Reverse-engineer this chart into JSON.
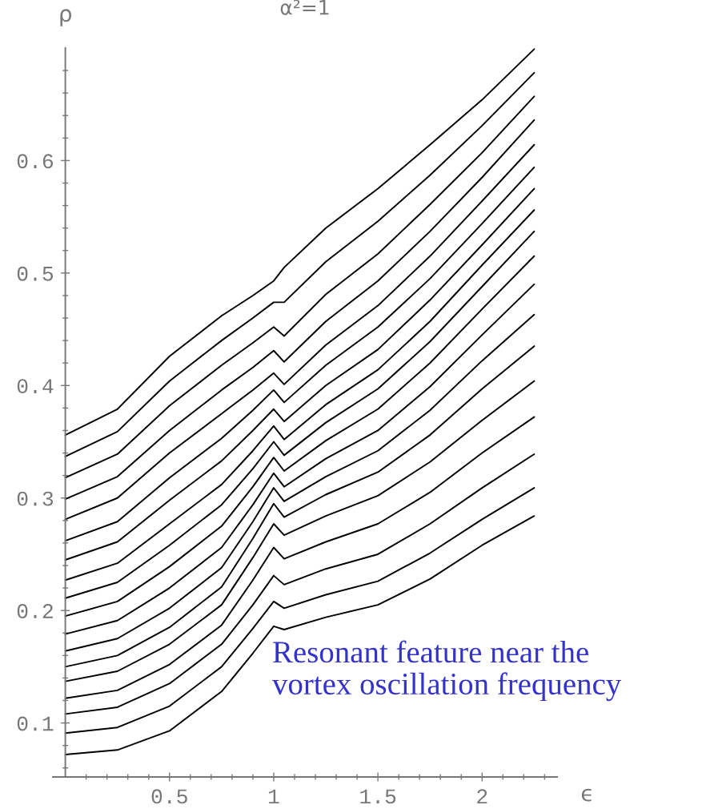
{
  "chart_data": {
    "type": "line",
    "title": "α²=1",
    "xlabel": "ϵ",
    "ylabel": "ρ",
    "x": [
      0,
      0.25,
      0.5,
      0.75,
      0.9,
      1.0,
      1.05,
      1.25,
      1.5,
      1.75,
      2.0,
      2.25
    ],
    "xlim": [
      -0.06,
      2.36
    ],
    "ylim": [
      0.052,
      0.7
    ],
    "xticks": [
      {
        "value": 0.1,
        "label": null
      },
      {
        "value": 0.2,
        "label": null
      },
      {
        "value": 0.3,
        "label": null
      },
      {
        "value": 0.4,
        "label": null
      },
      0.5,
      {
        "value": 0.6,
        "label": null
      },
      {
        "value": 0.7,
        "label": null
      },
      {
        "value": 0.8,
        "label": null
      },
      {
        "value": 0.9,
        "label": null
      },
      1,
      {
        "value": 1.1,
        "label": null
      },
      {
        "value": 1.2,
        "label": null
      },
      {
        "value": 1.3,
        "label": null
      },
      {
        "value": 1.4,
        "label": null
      },
      1.5,
      {
        "value": 1.6,
        "label": null
      },
      {
        "value": 1.7,
        "label": null
      },
      {
        "value": 1.8,
        "label": null
      },
      {
        "value": 1.9,
        "label": null
      },
      2,
      {
        "value": 2.1,
        "label": null
      },
      {
        "value": 2.2,
        "label": null
      },
      {
        "value": 2.3,
        "label": null
      }
    ],
    "yticks": [
      {
        "value": 0.06,
        "label": null
      },
      {
        "value": 0.08,
        "label": null
      },
      0.1,
      {
        "value": 0.12,
        "label": null
      },
      {
        "value": 0.14,
        "label": null
      },
      {
        "value": 0.16,
        "label": null
      },
      {
        "value": 0.18,
        "label": null
      },
      0.2,
      {
        "value": 0.22,
        "label": null
      },
      {
        "value": 0.24,
        "label": null
      },
      {
        "value": 0.26,
        "label": null
      },
      {
        "value": 0.28,
        "label": null
      },
      0.3,
      {
        "value": 0.32,
        "label": null
      },
      {
        "value": 0.34,
        "label": null
      },
      {
        "value": 0.36,
        "label": null
      },
      {
        "value": 0.38,
        "label": null
      },
      0.4,
      {
        "value": 0.42,
        "label": null
      },
      {
        "value": 0.44,
        "label": null
      },
      {
        "value": 0.46,
        "label": null
      },
      {
        "value": 0.48,
        "label": null
      },
      0.5,
      {
        "value": 0.52,
        "label": null
      },
      {
        "value": 0.54,
        "label": null
      },
      {
        "value": 0.56,
        "label": null
      },
      {
        "value": 0.58,
        "label": null
      },
      0.6,
      {
        "value": 0.62,
        "label": null
      },
      {
        "value": 0.64,
        "label": null
      },
      {
        "value": 0.66,
        "label": null
      },
      {
        "value": 0.68,
        "label": null
      }
    ],
    "annotations": [
      "Resonant feature near the\nvortex oscillation frequency"
    ],
    "series": [
      {
        "color": "#000000",
        "values": [
          0.356,
          0.379,
          0.426,
          0.462,
          0.48,
          0.493,
          0.505,
          0.54,
          0.575,
          0.614,
          0.654,
          0.699
        ]
      },
      {
        "color": "#000000",
        "values": [
          0.337,
          0.359,
          0.404,
          0.44,
          0.46,
          0.474,
          0.474,
          0.51,
          0.546,
          0.587,
          0.631,
          0.678
        ]
      },
      {
        "color": "#000000",
        "values": [
          0.318,
          0.339,
          0.382,
          0.418,
          0.438,
          0.452,
          0.444,
          0.481,
          0.517,
          0.561,
          0.607,
          0.657
        ]
      },
      {
        "color": "#000000",
        "values": [
          0.299,
          0.319,
          0.36,
          0.396,
          0.416,
          0.431,
          0.421,
          0.457,
          0.493,
          0.537,
          0.585,
          0.636
        ]
      },
      {
        "color": "#000000",
        "values": [
          0.281,
          0.3,
          0.34,
          0.375,
          0.396,
          0.411,
          0.401,
          0.436,
          0.471,
          0.515,
          0.564,
          0.614
        ]
      },
      {
        "color": "#000000",
        "values": [
          0.262,
          0.279,
          0.318,
          0.353,
          0.378,
          0.396,
          0.385,
          0.418,
          0.452,
          0.495,
          0.544,
          0.594
        ]
      },
      {
        "color": "#000000",
        "values": [
          0.245,
          0.261,
          0.298,
          0.333,
          0.36,
          0.379,
          0.368,
          0.4,
          0.432,
          0.476,
          0.525,
          0.575
        ]
      },
      {
        "color": "#000000",
        "values": [
          0.227,
          0.242,
          0.277,
          0.312,
          0.342,
          0.364,
          0.352,
          0.383,
          0.414,
          0.457,
          0.507,
          0.556
        ]
      },
      {
        "color": "#000000",
        "values": [
          0.211,
          0.225,
          0.258,
          0.294,
          0.326,
          0.35,
          0.338,
          0.367,
          0.397,
          0.439,
          0.488,
          0.537
        ]
      },
      {
        "color": "#000000",
        "values": [
          0.195,
          0.208,
          0.239,
          0.275,
          0.31,
          0.336,
          0.324,
          0.351,
          0.379,
          0.42,
          0.468,
          0.515
        ]
      },
      {
        "color": "#000000",
        "values": [
          0.179,
          0.191,
          0.22,
          0.256,
          0.294,
          0.322,
          0.31,
          0.335,
          0.36,
          0.399,
          0.445,
          0.49
        ]
      },
      {
        "color": "#000000",
        "values": [
          0.164,
          0.175,
          0.202,
          0.238,
          0.279,
          0.309,
          0.297,
          0.319,
          0.342,
          0.378,
          0.422,
          0.463
        ]
      },
      {
        "color": "#000000",
        "values": [
          0.15,
          0.16,
          0.185,
          0.221,
          0.264,
          0.295,
          0.283,
          0.303,
          0.323,
          0.356,
          0.397,
          0.435
        ]
      },
      {
        "color": "#000000",
        "values": [
          0.137,
          0.146,
          0.17,
          0.205,
          0.247,
          0.277,
          0.267,
          0.284,
          0.302,
          0.332,
          0.369,
          0.404
        ]
      },
      {
        "color": "#000000",
        "values": [
          0.122,
          0.129,
          0.152,
          0.187,
          0.227,
          0.256,
          0.246,
          0.261,
          0.277,
          0.305,
          0.34,
          0.372
        ]
      },
      {
        "color": "#000000",
        "values": [
          0.108,
          0.114,
          0.135,
          0.17,
          0.205,
          0.231,
          0.223,
          0.237,
          0.25,
          0.277,
          0.309,
          0.339
        ]
      },
      {
        "color": "#000000",
        "values": [
          0.091,
          0.096,
          0.115,
          0.15,
          0.184,
          0.208,
          0.202,
          0.214,
          0.226,
          0.251,
          0.281,
          0.309
        ]
      },
      {
        "color": "#000000",
        "values": [
          0.072,
          0.076,
          0.093,
          0.128,
          0.162,
          0.186,
          0.183,
          0.194,
          0.205,
          0.228,
          0.258,
          0.284
        ]
      }
    ]
  }
}
